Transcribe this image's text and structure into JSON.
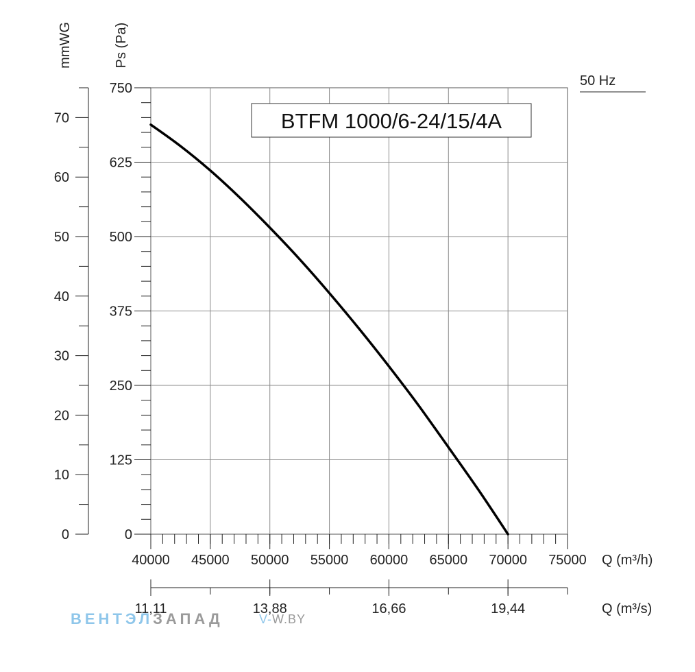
{
  "chart_data": {
    "type": "line",
    "title": "BTFM 1000/6-24/15/4A",
    "frequency_label": "50 Hz",
    "xlabel": "Q (m³/h)",
    "xlabel_secondary": "Q (m³/s)",
    "ylabel": "Ps (Pa)",
    "ylabel_secondary": "mmWG",
    "xlim": [
      40000,
      75000
    ],
    "ylim": [
      0,
      750
    ],
    "ylim_secondary": [
      0,
      75
    ],
    "x_ticks": [
      "40000",
      "45000",
      "50000",
      "55000",
      "60000",
      "65000",
      "70000",
      "75000"
    ],
    "y_ticks": [
      "0",
      "125",
      "250",
      "375",
      "500",
      "625",
      "750"
    ],
    "y_secondary_ticks": [
      "0",
      "10",
      "20",
      "30",
      "40",
      "50",
      "60",
      "70"
    ],
    "x_secondary_ticks": [
      {
        "q_m3h": 40000,
        "label": "11,11"
      },
      {
        "q_m3h": 50000,
        "label": "13,88"
      },
      {
        "q_m3h": 60000,
        "label": "16,66"
      },
      {
        "q_m3h": 70000,
        "label": "19,44"
      }
    ],
    "grid": true,
    "series": [
      {
        "x": [
          40000,
          42500,
          45000,
          47500,
          50000,
          52500,
          55000,
          57500,
          60000,
          62500,
          65000,
          67500,
          70000
        ],
        "y": [
          688,
          652,
          611,
          565,
          515,
          462,
          405,
          345,
          282,
          216,
          146,
          75,
          0
        ]
      }
    ]
  },
  "watermark": {
    "brand_part1": "ВЕНТЭЛ",
    "brand_part2": "ЗАПАД",
    "site_part1": "V-",
    "site_part2": "W.BY"
  }
}
